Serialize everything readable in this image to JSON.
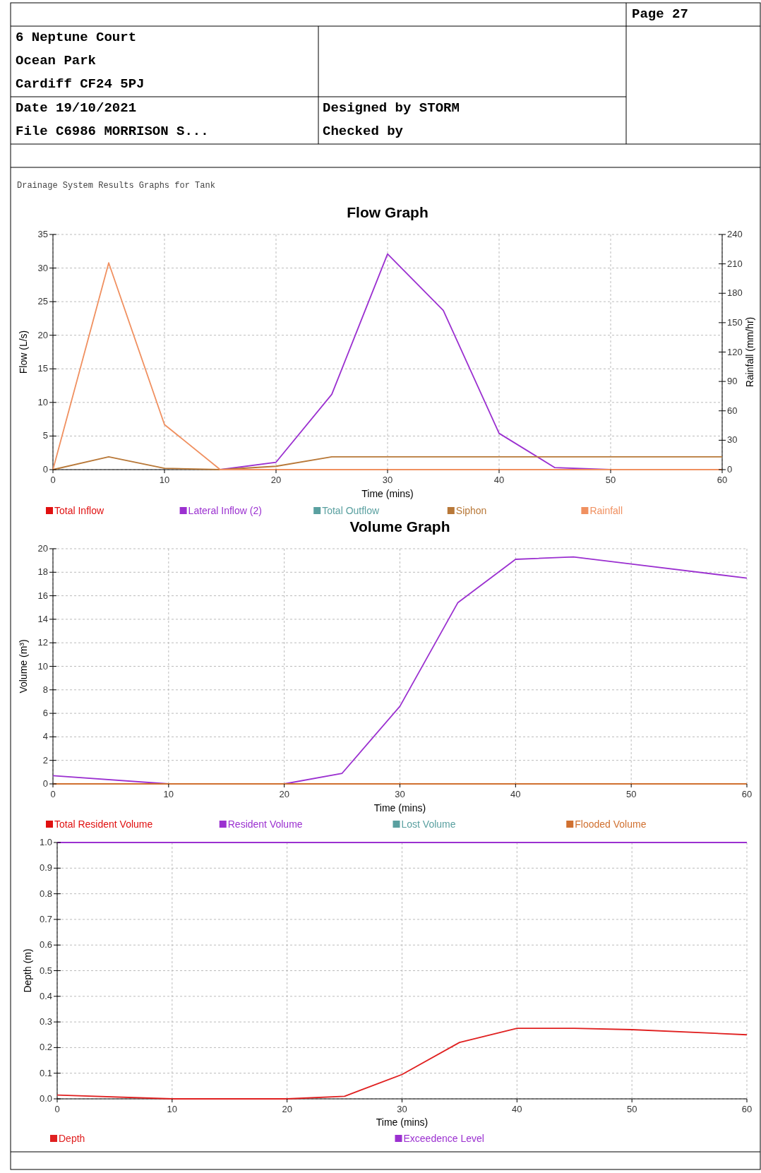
{
  "chart_data": [
    {
      "type": "other",
      "annotations": [
        "Page 27",
        "6 Neptune Court",
        "Ocean Park",
        "Cardiff  CF24 5PJ",
        "Date 19/10/2021",
        "Designed by STORM",
        "File C6986 MORRISON S...",
        "Checked by",
        "Drainage System Results Graphs for Tank"
      ]
    },
    {
      "type": "line",
      "title": "Flow Graph",
      "xlabel": "Time (mins)",
      "ylabel": "Flow (L/s)",
      "y2label": "Rainfall (mm/hr)",
      "x": [
        0,
        5,
        10,
        15,
        20,
        25,
        30,
        35,
        40,
        45,
        50,
        55,
        60
      ],
      "xlim": [
        0,
        60
      ],
      "xticks": [
        0,
        10,
        20,
        30,
        40,
        50,
        60
      ],
      "ylim": [
        0,
        35
      ],
      "yticks": [
        0,
        5,
        10,
        15,
        20,
        25,
        30,
        35
      ],
      "y2lim": [
        0,
        240
      ],
      "y2ticks": [
        0,
        30,
        60,
        90,
        120,
        150,
        180,
        210,
        240
      ],
      "grid": true,
      "legend": "bottom",
      "marker": "none",
      "line_style": "solid",
      "series": [
        {
          "name": "Total Inflow",
          "color": "#e01010",
          "values": [
            null,
            null,
            null,
            null,
            null,
            null,
            null,
            null,
            null,
            null,
            null,
            null,
            null
          ]
        },
        {
          "name": "Lateral Inflow (2)",
          "color": "#9b30d0",
          "values": [
            null,
            null,
            null,
            0,
            1.1,
            11.2,
            32.1,
            23.7,
            5.4,
            0.3,
            0,
            null,
            null
          ]
        },
        {
          "name": "Total Outflow",
          "color": "#5aa0a0",
          "values": [
            null,
            null,
            null,
            null,
            null,
            null,
            null,
            null,
            null,
            null,
            null,
            null,
            null
          ]
        },
        {
          "name": "Siphon",
          "color": "#b87838",
          "values": [
            0,
            1.9,
            0.2,
            0,
            0.5,
            1.9,
            1.9,
            1.9,
            1.9,
            1.9,
            1.9,
            1.9,
            1.9
          ]
        },
        {
          "name": "Rainfall",
          "color": "#f09060",
          "axis": "y2",
          "values": [
            0,
            211,
            46,
            0,
            0,
            0,
            0,
            0,
            0,
            0,
            0,
            0,
            0
          ]
        }
      ]
    },
    {
      "type": "line",
      "title": "Volume Graph",
      "xlabel": "Time (mins)",
      "ylabel": "Volume (m³)",
      "x": [
        0,
        10,
        20,
        25,
        30,
        35,
        40,
        45,
        50,
        60
      ],
      "xlim": [
        0,
        60
      ],
      "xticks": [
        0,
        10,
        20,
        30,
        40,
        50,
        60
      ],
      "ylim": [
        0,
        20
      ],
      "yticks": [
        0,
        2,
        4,
        6,
        8,
        10,
        12,
        14,
        16,
        18,
        20
      ],
      "grid": true,
      "legend": "bottom",
      "marker": "none",
      "line_style": "solid",
      "series": [
        {
          "name": "Total Resident Volume",
          "color": "#e01010",
          "values": [
            null,
            null,
            null,
            null,
            null,
            null,
            null,
            null,
            null,
            null
          ]
        },
        {
          "name": "Resident Volume",
          "color": "#9b30d0",
          "values": [
            0.7,
            0,
            0,
            0.9,
            6.6,
            15.4,
            19.1,
            19.3,
            18.7,
            17.5
          ]
        },
        {
          "name": "Lost Volume",
          "color": "#5aa0a0",
          "values": [
            null,
            null,
            null,
            null,
            null,
            null,
            null,
            null,
            null,
            null
          ]
        },
        {
          "name": "Flooded Volume",
          "color": "#d07030",
          "values": [
            0,
            0,
            0,
            0,
            0,
            0,
            0,
            0,
            0,
            0
          ]
        }
      ]
    },
    {
      "type": "line",
      "xlabel": "Time (mins)",
      "ylabel": "Depth (m)",
      "x": [
        0,
        10,
        20,
        25,
        30,
        35,
        40,
        45,
        50,
        60
      ],
      "xlim": [
        0,
        60
      ],
      "xticks": [
        0,
        10,
        20,
        30,
        40,
        50,
        60
      ],
      "ylim": [
        0,
        1
      ],
      "yticks": [
        {
          "value": 0,
          "label": "0.0"
        },
        {
          "value": 0.1,
          "label": "0.1"
        },
        {
          "value": 0.2,
          "label": "0.2"
        },
        {
          "value": 0.3,
          "label": "0.3"
        },
        {
          "value": 0.4,
          "label": "0.4"
        },
        {
          "value": 0.5,
          "label": "0.5"
        },
        {
          "value": 0.6,
          "label": "0.6"
        },
        {
          "value": 0.7,
          "label": "0.7"
        },
        {
          "value": 0.8,
          "label": "0.8"
        },
        {
          "value": 0.9,
          "label": "0.9"
        },
        {
          "value": 1,
          "label": "1.0"
        }
      ],
      "grid": true,
      "legend": "bottom",
      "marker": "none",
      "line_style": "solid",
      "series": [
        {
          "name": "Depth",
          "color": "#e02020",
          "values": [
            0.015,
            0,
            0,
            0.01,
            0.095,
            0.22,
            0.275,
            0.275,
            0.27,
            0.25
          ]
        },
        {
          "name": "Exceedence Level",
          "color": "#9b30d0",
          "values": [
            1,
            1,
            1,
            1,
            1,
            1,
            1,
            1,
            1,
            1
          ]
        }
      ]
    }
  ]
}
